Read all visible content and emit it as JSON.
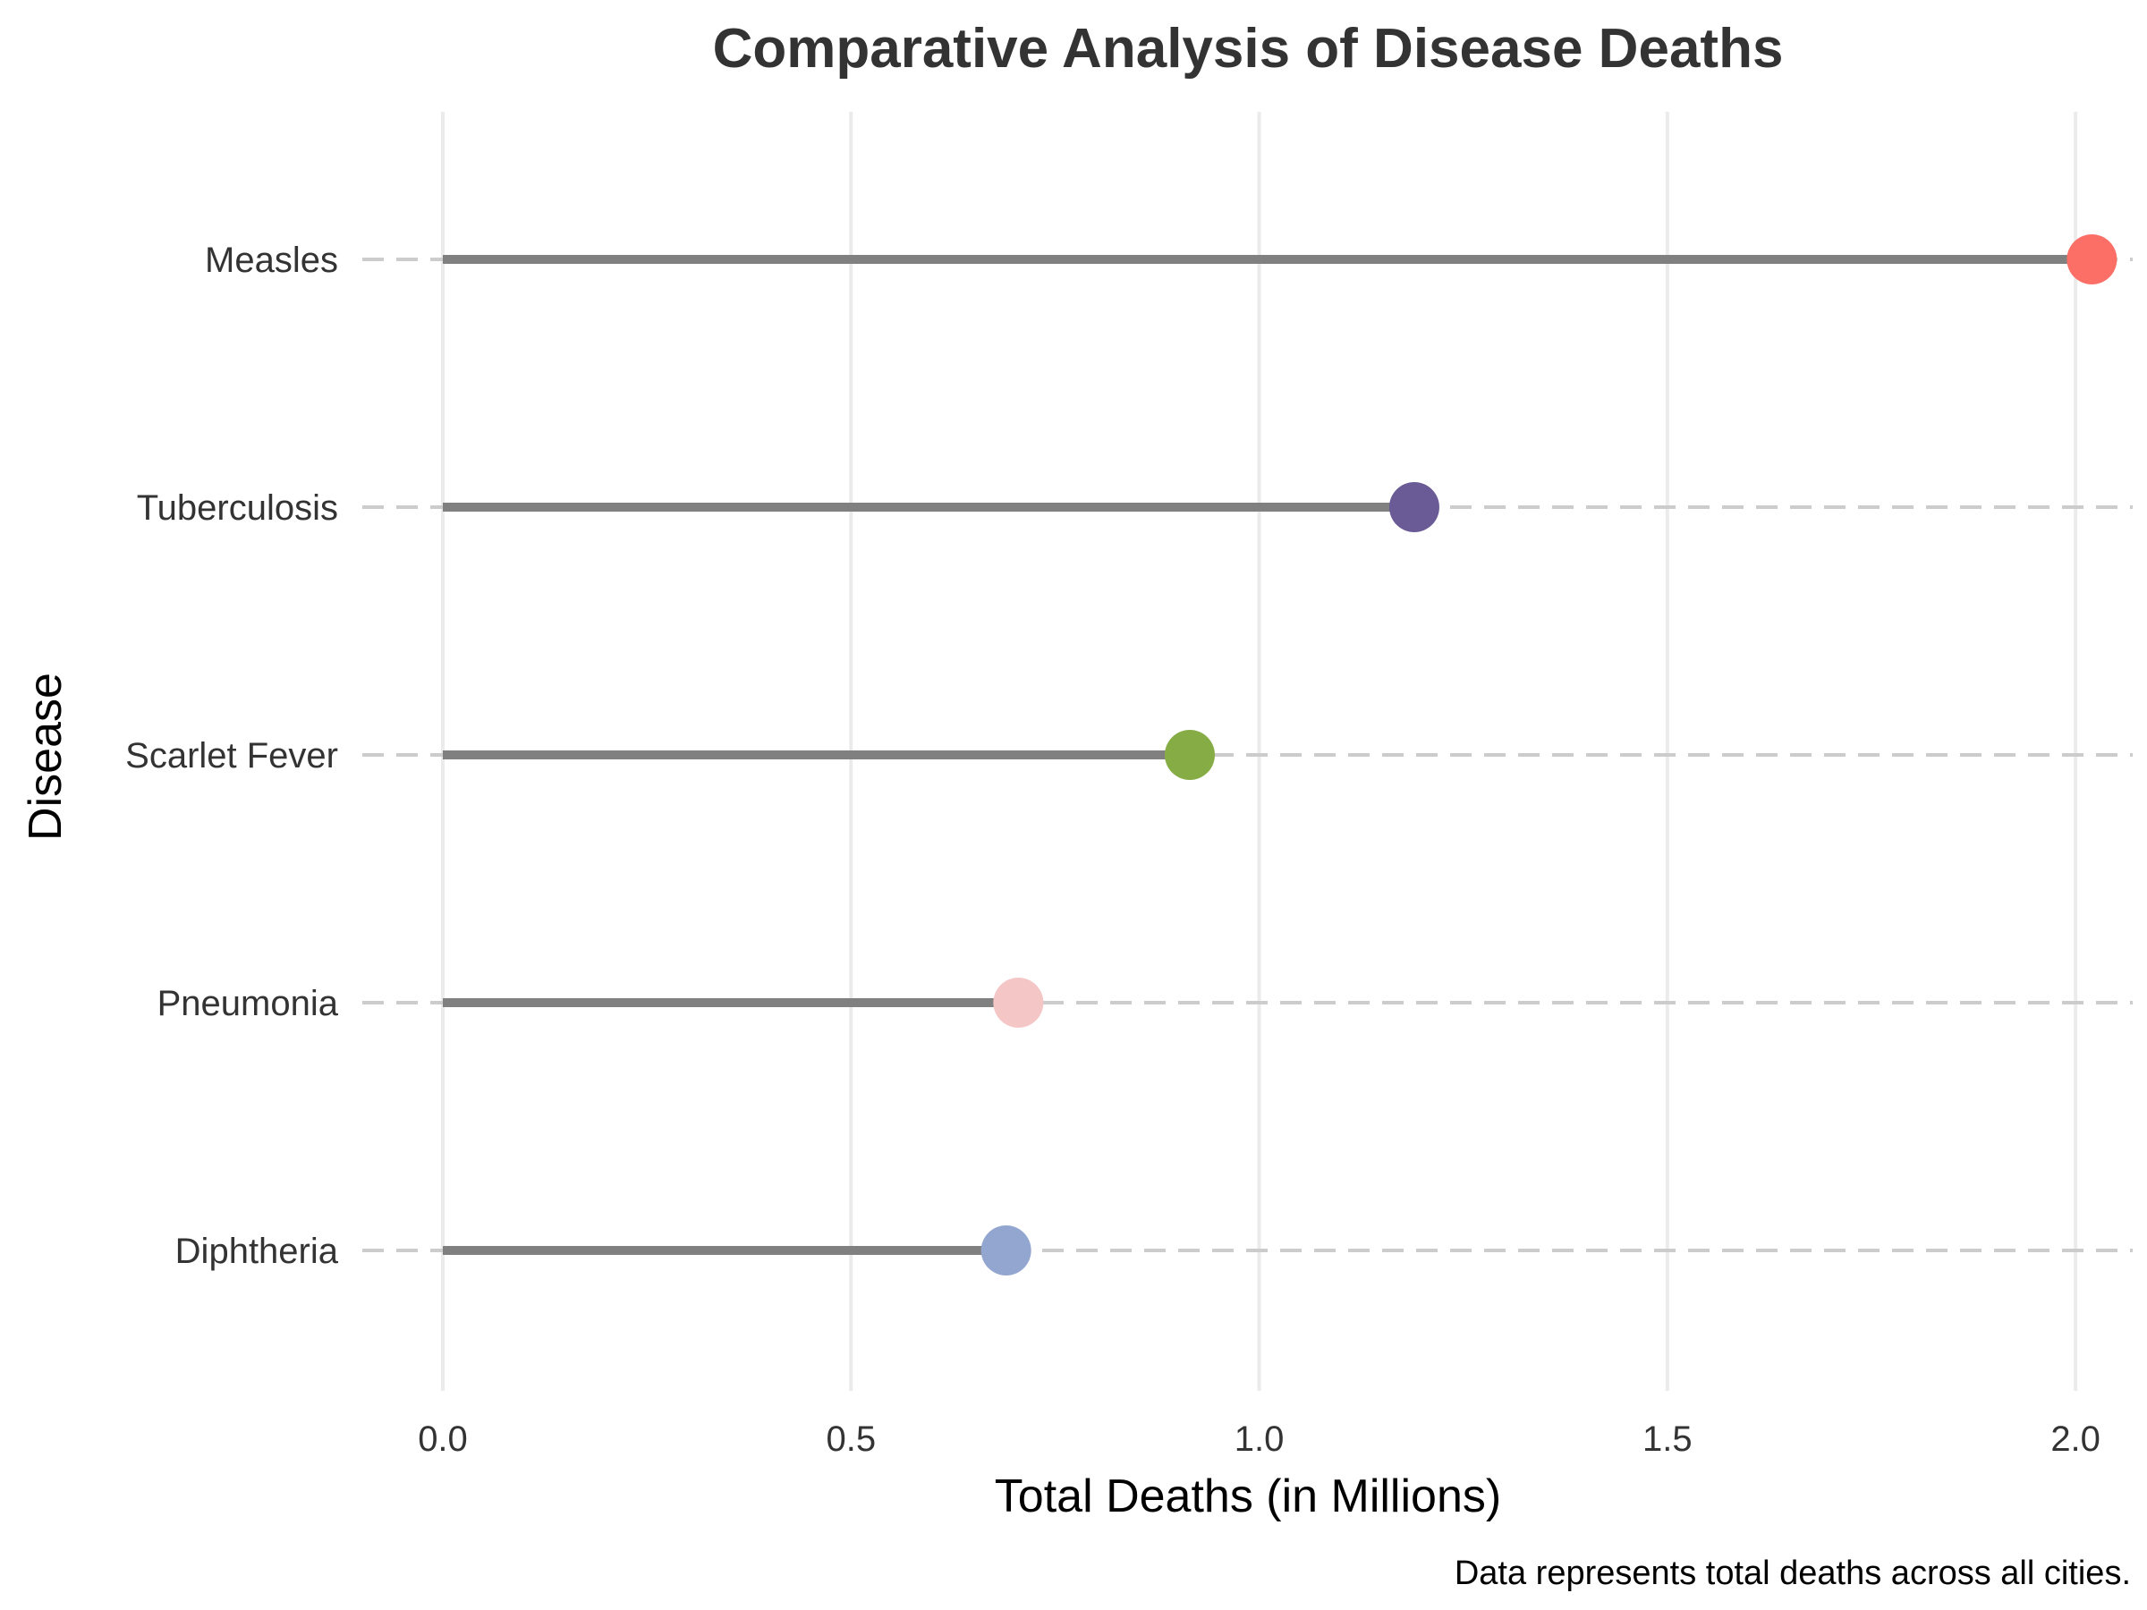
{
  "chart_data": {
    "type": "lollipop",
    "orientation": "horizontal",
    "title": "Comparative Analysis of Disease Deaths",
    "xlabel": "Total Deaths (in Millions)",
    "ylabel": "Disease",
    "caption": "Data represents total deaths across all cities.",
    "xlim": [
      0,
      2.07
    ],
    "x_ticks": [
      0.0,
      0.5,
      1.0,
      1.5,
      2.0
    ],
    "x_tick_labels": [
      "0.0",
      "0.5",
      "1.0",
      "1.5",
      "2.0"
    ],
    "categories": [
      "Measles",
      "Tuberculosis",
      "Scarlet Fever",
      "Pneumonia",
      "Diphtheria"
    ],
    "values": [
      2.02,
      1.19,
      0.915,
      0.705,
      0.69
    ],
    "point_colors": [
      "#fb6f66",
      "#6a5a96",
      "#86ac46",
      "#f5c6c6",
      "#92a6cf"
    ],
    "stem_color": "#808080",
    "guide_color": "#cccccc",
    "grid": true,
    "legend": "none"
  }
}
